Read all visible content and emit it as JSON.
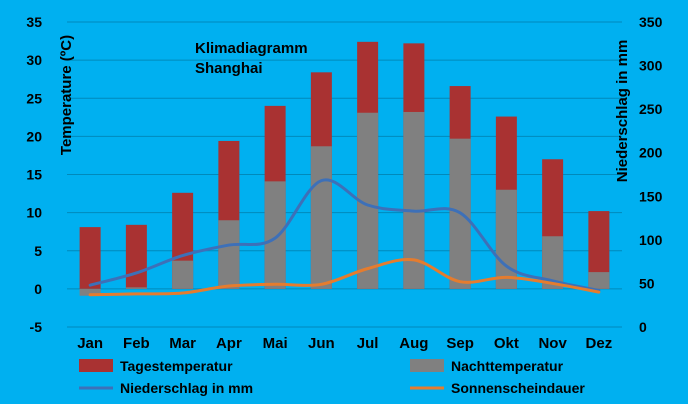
{
  "chart_data": {
    "type": "bar",
    "title_lines": [
      "Klimadiagramm",
      "Shanghai"
    ],
    "categories": [
      "Jan",
      "Feb",
      "Mar",
      "Apr",
      "Mai",
      "Jun",
      "Jul",
      "Aug",
      "Sep",
      "Okt",
      "Nov",
      "Dez"
    ],
    "y_left": {
      "label": "Temperature (ºC)",
      "min": -5,
      "max": 35,
      "ticks": [
        -5,
        0,
        5,
        10,
        15,
        20,
        25,
        30,
        35
      ]
    },
    "y_right": {
      "label": "Niederschlag in mm",
      "min": 0,
      "max": 350,
      "ticks": [
        0,
        50,
        100,
        150,
        200,
        250,
        300,
        350
      ]
    },
    "grid": true,
    "legend_position": "bottom",
    "series": [
      {
        "name": "Tagestemperatur",
        "kind": "bar",
        "axis": "left",
        "color": "#a93232",
        "values": [
          8.1,
          8.4,
          12.6,
          19.4,
          24.0,
          28.4,
          32.4,
          32.2,
          26.6,
          22.6,
          17.0,
          10.2
        ]
      },
      {
        "name": "Nachttemperatur",
        "kind": "bar",
        "axis": "left",
        "color": "#808080",
        "values": [
          -0.9,
          0.2,
          3.7,
          9.0,
          14.1,
          18.7,
          23.1,
          23.2,
          19.7,
          13.0,
          6.9,
          2.2
        ]
      },
      {
        "name": "Niederschlag in mm",
        "kind": "line",
        "axis": "right",
        "color": "#3d70b8",
        "values": [
          48,
          62,
          82,
          94,
          102,
          168,
          140,
          133,
          131,
          70,
          53,
          42
        ]
      },
      {
        "name": "Sonnenscheindauer",
        "kind": "line",
        "axis": "right",
        "color": "#e57c2e",
        "values": [
          37,
          38,
          39,
          47,
          49,
          49,
          67,
          77,
          52,
          57,
          50,
          40
        ]
      }
    ]
  }
}
